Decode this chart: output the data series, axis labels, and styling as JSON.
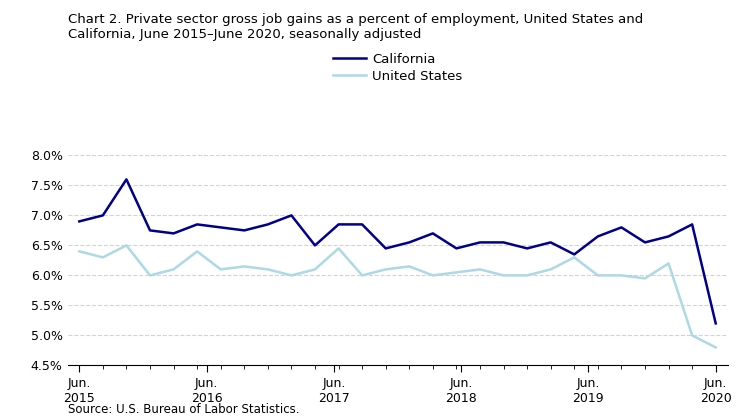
{
  "title_line1": "Chart 2. Private sector gross job gains as a percent of employment, United States and",
  "title_line2": "California, June 2015–June 2020, seasonally adjusted",
  "source": "Source: U.S. Bureau of Labor Statistics.",
  "california": [
    6.9,
    7.0,
    7.6,
    6.75,
    6.7,
    6.85,
    6.8,
    6.75,
    6.85,
    7.0,
    6.5,
    6.85,
    6.85,
    6.45,
    6.55,
    6.7,
    6.45,
    6.55,
    6.55,
    6.45,
    6.55,
    6.35,
    6.65,
    6.8,
    6.55,
    6.65,
    6.85,
    5.2
  ],
  "us": [
    6.4,
    6.3,
    6.5,
    6.0,
    6.1,
    6.4,
    6.1,
    6.15,
    6.1,
    6.0,
    6.1,
    6.45,
    6.0,
    6.1,
    6.15,
    6.0,
    6.05,
    6.1,
    6.0,
    6.0,
    6.1,
    6.3,
    6.0,
    6.0,
    5.95,
    6.2,
    5.0,
    4.8
  ],
  "california_color": "#00008B",
  "us_color": "#ADD8E6",
  "ylim": [
    4.5,
    8.0
  ],
  "yticks": [
    4.5,
    5.0,
    5.5,
    6.0,
    6.5,
    7.0,
    7.5,
    8.0
  ],
  "legend_california": "California",
  "legend_us": "United States",
  "n_points": 28
}
